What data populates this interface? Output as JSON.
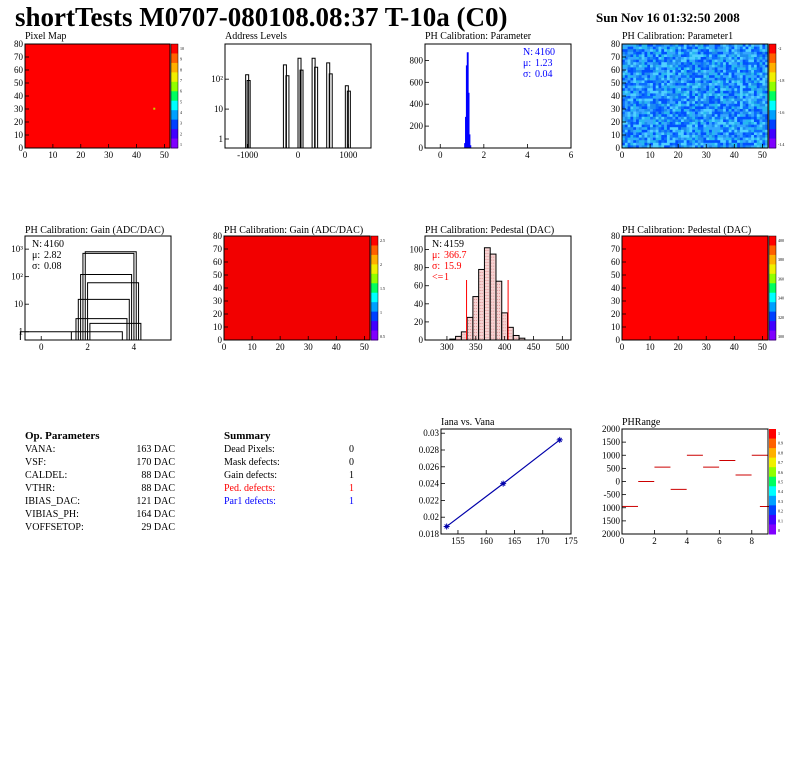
{
  "header": {
    "title": "shortTests M0707-080108.08:37 T-10a (C0)",
    "date": "Sun Nov 16 01:32:50 2008"
  },
  "chart_data": [
    {
      "id": "pixel_map",
      "type": "heatmap",
      "title": "Pixel Map",
      "x_ticks": [
        "0",
        "10",
        "20",
        "30",
        "40",
        "50"
      ],
      "y_ticks": [
        "0",
        "10",
        "20",
        "30",
        "40",
        "50",
        "60",
        "70",
        "80"
      ],
      "xlim": [
        0,
        52
      ],
      "ylim": [
        0,
        80
      ],
      "fill": "#ff0000",
      "z_ticks": [
        "10",
        "9",
        "8",
        "7",
        "6",
        "5",
        "4",
        "3",
        "2",
        "1"
      ],
      "marks": [
        {
          "x": 46,
          "y": 31,
          "color": "#c8d200"
        }
      ]
    },
    {
      "id": "address_levels",
      "type": "bar",
      "title": "Address Levels",
      "y_scale": "log",
      "x_ticks": [
        "-1000",
        "0",
        "1000"
      ],
      "y_ticks": [
        "1",
        "10",
        "10²"
      ],
      "xlim": [
        -1450,
        1450
      ],
      "ylim": [
        0.5,
        1500
      ],
      "peaks": [
        {
          "x": -1010,
          "h": 140
        },
        {
          "x": -980,
          "h": 90
        },
        {
          "x": -260,
          "h": 300
        },
        {
          "x": -210,
          "h": 130
        },
        {
          "x": 30,
          "h": 500
        },
        {
          "x": 70,
          "h": 200
        },
        {
          "x": 310,
          "h": 500
        },
        {
          "x": 360,
          "h": 250
        },
        {
          "x": 600,
          "h": 350
        },
        {
          "x": 650,
          "h": 150
        },
        {
          "x": 970,
          "h": 60
        },
        {
          "x": 1010,
          "h": 40
        }
      ]
    },
    {
      "id": "ph_param",
      "type": "bar",
      "title": "PH Calibration: Parameter",
      "x_ticks": [
        "0",
        "2",
        "4",
        "6"
      ],
      "y_ticks": [
        "0",
        "200",
        "400",
        "600",
        "800"
      ],
      "xlim": [
        -0.7,
        6
      ],
      "ylim": [
        0,
        950
      ],
      "bins": [
        {
          "x": 1.14,
          "y": 40
        },
        {
          "x": 1.18,
          "y": 280
        },
        {
          "x": 1.22,
          "y": 750
        },
        {
          "x": 1.26,
          "y": 870
        },
        {
          "x": 1.3,
          "y": 500
        },
        {
          "x": 1.34,
          "y": 120
        },
        {
          "x": 1.38,
          "y": 20
        }
      ],
      "stats": [
        {
          "label": "N:",
          "value": "4160"
        },
        {
          "label": "μ:",
          "value": "1.23"
        },
        {
          "label": "σ:",
          "value": "0.04"
        }
      ],
      "color": "#0000ff"
    },
    {
      "id": "ph_param1",
      "type": "heatmap",
      "title": "PH Calibration: Parameter1",
      "x_ticks": [
        "0",
        "10",
        "20",
        "30",
        "40",
        "50"
      ],
      "y_ticks": [
        "0",
        "10",
        "20",
        "30",
        "40",
        "50",
        "60",
        "70",
        "80"
      ],
      "xlim": [
        0,
        52
      ],
      "ylim": [
        0,
        80
      ],
      "z_ticks": [
        "-2",
        "-1.8",
        "-1.6",
        "-1.4"
      ],
      "palette": [
        "#0050ff",
        "#1c8cf0",
        "#34a6ff",
        "#26b8f0",
        "#4fd0ff",
        "#0a6cff"
      ]
    },
    {
      "id": "gain_1d",
      "type": "bar",
      "title": "PH Calibration: Gain (ADC/DAC)",
      "y_scale": "log",
      "x_ticks": [
        "0",
        "2",
        "4"
      ],
      "y_ticks": [
        "1",
        "10",
        "10²",
        "10³"
      ],
      "xlim": [
        -0.7,
        5.6
      ],
      "ylim": [
        0.5,
        3000
      ],
      "bins": [
        {
          "x": 0.2,
          "y": 1
        },
        {
          "x": 2.4,
          "y": 1
        },
        {
          "x": 2.6,
          "y": 3
        },
        {
          "x": 2.7,
          "y": 15
        },
        {
          "x": 2.8,
          "y": 120
        },
        {
          "x": 2.9,
          "y": 700
        },
        {
          "x": 3.0,
          "y": 800
        },
        {
          "x": 3.1,
          "y": 60
        },
        {
          "x": 3.2,
          "y": 2
        }
      ],
      "stats": [
        {
          "label": "N:",
          "value": "4160"
        },
        {
          "label": "μ:",
          "value": "2.82"
        },
        {
          "label": "σ:",
          "value": "0.08"
        }
      ]
    },
    {
      "id": "gain_map",
      "type": "heatmap",
      "title": "PH Calibration: Gain (ADC/DAC)",
      "x_ticks": [
        "0",
        "10",
        "20",
        "30",
        "40",
        "50"
      ],
      "y_ticks": [
        "0",
        "10",
        "20",
        "30",
        "40",
        "50",
        "60",
        "70",
        "80"
      ],
      "xlim": [
        0,
        52
      ],
      "ylim": [
        0,
        80
      ],
      "fill": "#f20000",
      "z_ticks": [
        "2.5",
        "2",
        "1.5",
        "1",
        "0.5"
      ]
    },
    {
      "id": "pedestal_1d",
      "type": "bar",
      "title": "PH Calibration: Pedestal (DAC)",
      "x_ticks": [
        "300",
        "350",
        "400",
        "450",
        "500"
      ],
      "y_ticks": [
        "0",
        "20",
        "40",
        "60",
        "80",
        "100"
      ],
      "xlim": [
        262,
        515
      ],
      "ylim": [
        0,
        115
      ],
      "bins": [
        {
          "x": 310,
          "y": 1
        },
        {
          "x": 320,
          "y": 4
        },
        {
          "x": 330,
          "y": 9
        },
        {
          "x": 340,
          "y": 25
        },
        {
          "x": 350,
          "y": 48
        },
        {
          "x": 360,
          "y": 78
        },
        {
          "x": 370,
          "y": 102
        },
        {
          "x": 380,
          "y": 95
        },
        {
          "x": 390,
          "y": 65
        },
        {
          "x": 400,
          "y": 30
        },
        {
          "x": 410,
          "y": 14
        },
        {
          "x": 420,
          "y": 5
        },
        {
          "x": 430,
          "y": 2
        }
      ],
      "cuts": [
        334,
        406
      ],
      "stats": [
        {
          "label": "N:",
          "value": "4159",
          "color": "#000000"
        },
        {
          "label": "μ:",
          "value": "366.7",
          "color": "#ff0000"
        },
        {
          "label": "σ:",
          "value": "15.9",
          "color": "#ff0000"
        },
        {
          "label": "<=",
          "value": "1",
          "color": "#ff0000"
        }
      ]
    },
    {
      "id": "pedestal_map",
      "type": "heatmap",
      "title": "PH Calibration: Pedestal (DAC)",
      "x_ticks": [
        "0",
        "10",
        "20",
        "30",
        "40",
        "50"
      ],
      "y_ticks": [
        "0",
        "10",
        "20",
        "30",
        "40",
        "50",
        "60",
        "70",
        "80"
      ],
      "xlim": [
        0,
        52
      ],
      "ylim": [
        0,
        80
      ],
      "fill": "#ff0000",
      "z_ticks": [
        "400",
        "380",
        "360",
        "340",
        "320",
        "300"
      ]
    },
    {
      "id": "iana_vana",
      "type": "line",
      "title": "Iana vs. Vana",
      "x_ticks": [
        "155",
        "160",
        "165",
        "170",
        "175"
      ],
      "y_ticks": [
        "0.018",
        "0.02",
        "0.022",
        "0.024",
        "0.026",
        "0.028",
        "0.03"
      ],
      "xlim": [
        152,
        175
      ],
      "ylim": [
        0.018,
        0.0305
      ],
      "points": [
        {
          "x": 153,
          "y": 0.0189
        },
        {
          "x": 163,
          "y": 0.024
        },
        {
          "x": 173,
          "y": 0.0292
        }
      ],
      "color": "#0000aa"
    },
    {
      "id": "phrange",
      "type": "bar",
      "title": "PHRange",
      "x_ticks": [
        "0",
        "2",
        "4",
        "6",
        "8"
      ],
      "y_ticks": [
        "2000",
        "1500",
        "1000",
        "500",
        "0",
        "-500",
        "1000",
        "1500",
        "2000"
      ],
      "xlim": [
        0,
        9
      ],
      "ylim": [
        -2000,
        2000
      ],
      "levels": [
        {
          "x": 0,
          "y": -950
        },
        {
          "x": 1,
          "y": 0
        },
        {
          "x": 2,
          "y": 550
        },
        {
          "x": 3,
          "y": -300
        },
        {
          "x": 4,
          "y": 1000
        },
        {
          "x": 5,
          "y": 550
        },
        {
          "x": 6,
          "y": 800
        },
        {
          "x": 7,
          "y": 250
        },
        {
          "x": 8,
          "y": 1000
        },
        {
          "x": 8.5,
          "y": -950
        }
      ],
      "z_ticks": [
        "1",
        "0.9",
        "0.8",
        "0.7",
        "0.6",
        "0.5",
        "0.4",
        "0.3",
        "0.2",
        "0.1",
        "0"
      ]
    }
  ],
  "op_params": {
    "title": "Op. Parameters",
    "rows": [
      {
        "name": "VANA:",
        "value": "163 DAC"
      },
      {
        "name": "VSF:",
        "value": "170 DAC"
      },
      {
        "name": "CALDEL:",
        "value": "88 DAC"
      },
      {
        "name": "VTHR:",
        "value": "88 DAC"
      },
      {
        "name": "IBIAS_DAC:",
        "value": "121 DAC"
      },
      {
        "name": "VIBIAS_PH:",
        "value": "164 DAC"
      },
      {
        "name": "VOFFSETOP:",
        "value": "29 DAC"
      }
    ]
  },
  "summary": {
    "title": "Summary",
    "rows": [
      {
        "name": "Dead Pixels:",
        "value": "0",
        "color": "#000000"
      },
      {
        "name": "Mask defects:",
        "value": "0",
        "color": "#000000"
      },
      {
        "name": "Gain defects:",
        "value": "1",
        "color": "#000000"
      },
      {
        "name": "Ped. defects:",
        "value": "1",
        "color": "#ff0000"
      },
      {
        "name": "Par1 defects:",
        "value": "1",
        "color": "#0000ff"
      }
    ]
  }
}
